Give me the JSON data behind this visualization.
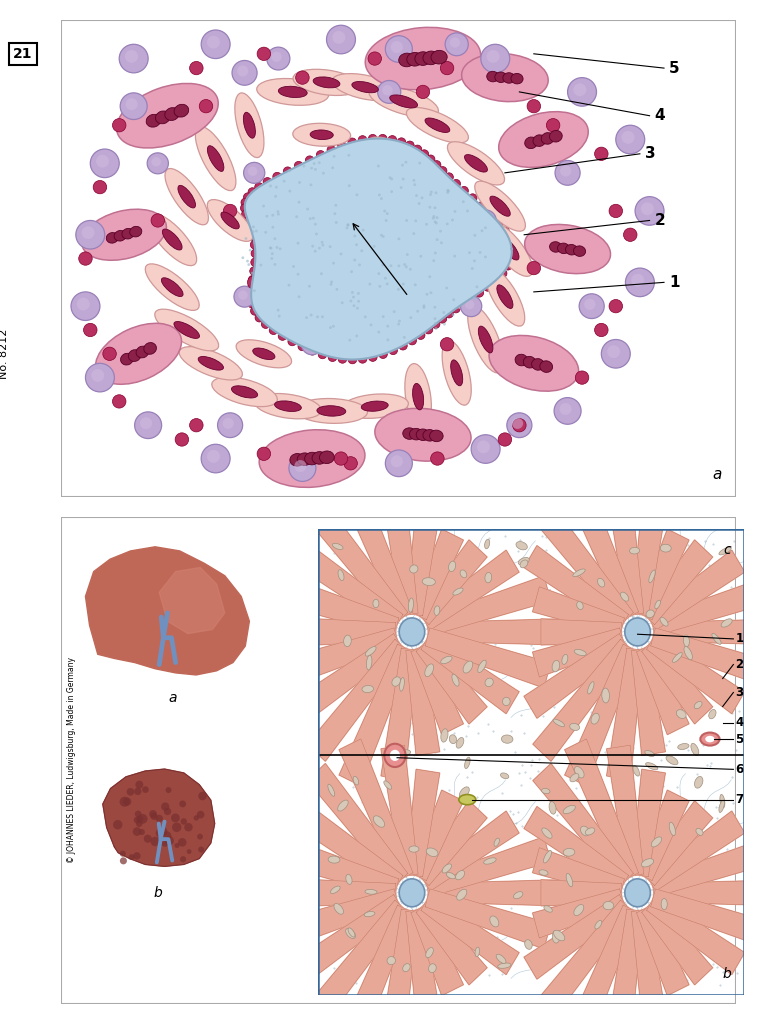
{
  "bg_white": "#ffffff",
  "panel_border": "#aaaaaa",
  "cell_blue": "#b8d4e8",
  "cell_blue_border": "#8aaac4",
  "cell_blue_dots": "#c03060",
  "spindle_fill": "#f5cfc8",
  "spindle_border": "#d09898",
  "spindle_nucleus": "#9b2050",
  "large_cell_fill": "#e8a0b8",
  "large_cell_border": "#c07090",
  "large_nucleus": "#8b2048",
  "purple_circle_fill": "#c0a8d4",
  "purple_circle_border": "#9880b8",
  "purple_inner": "#a890c4",
  "dark_dot_fill": "#b83060",
  "dark_dot_border": "#880030",
  "panel_num": "21",
  "catalog_num": "No. 8212",
  "copyright": "© JOHANNES LIEDER, Ludwigsburg, Made in Germany",
  "sinusoid_blue": "#b8d8ea",
  "hepatocyte_fill": "#e8a898",
  "hepatocyte_border": "#c07860",
  "hep_line_color": "#b07060",
  "central_vein_fill": "#a8c8e0",
  "central_vein_border": "#7090b0",
  "oval_nucleus_fill": "#d8c8b8",
  "oval_nucleus_border": "#a09080",
  "portal_pink_fill": "#e89090",
  "portal_pink_border": "#c06060",
  "bile_duct_fill": "#c8c860",
  "bile_duct_border": "#909020",
  "liver_healthy": "#c06858",
  "liver_light": "#d08070",
  "liver_cirrhosis": "#9b4840",
  "liver_dark": "#7a3030",
  "bile_tube_color": "#7090c0"
}
